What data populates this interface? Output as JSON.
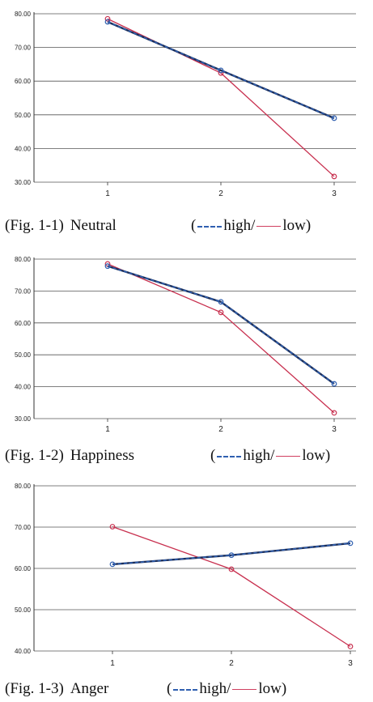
{
  "chart_data": [
    {
      "type": "line",
      "caption_fig": "(Fig.  1-1)",
      "caption_name": "Neutral",
      "categories": [
        "1",
        "2",
        "3"
      ],
      "ylim": [
        30,
        80
      ],
      "yticks": [
        "30.00",
        "40.00",
        "50.00",
        "60.00",
        "70.00",
        "80.00"
      ],
      "grid": true,
      "series": [
        {
          "name": "high",
          "values": [
            77.6,
            63.2,
            49.0
          ],
          "color": "#2f5fb0",
          "style": "dashed"
        },
        {
          "name": "low",
          "values": [
            78.5,
            62.4,
            31.7
          ],
          "color": "#c8304f",
          "style": "solid"
        }
      ],
      "legend": {
        "open": "(",
        "high": "high/",
        "low": "low)"
      }
    },
    {
      "type": "line",
      "caption_fig": "(Fig.  1-2)",
      "caption_name": "Happiness",
      "categories": [
        "1",
        "2",
        "3"
      ],
      "ylim": [
        30,
        80
      ],
      "yticks": [
        "30.00",
        "40.00",
        "50.00",
        "60.00",
        "70.00",
        "80.00"
      ],
      "grid": true,
      "series": [
        {
          "name": "high",
          "values": [
            77.8,
            66.6,
            40.9
          ],
          "color": "#2f5fb0",
          "style": "dashed"
        },
        {
          "name": "low",
          "values": [
            78.5,
            63.3,
            31.8
          ],
          "color": "#c8304f",
          "style": "solid"
        }
      ],
      "legend": {
        "open": "(",
        "high": "high/",
        "low": "low)"
      }
    },
    {
      "type": "line",
      "caption_fig": "(Fig.  1-3)",
      "caption_name": "Anger",
      "categories": [
        "1",
        "2",
        "3"
      ],
      "ylim": [
        40,
        80
      ],
      "yticks": [
        "40.00",
        "50.00",
        "60.00",
        "70.00",
        "80.00"
      ],
      "grid": true,
      "series": [
        {
          "name": "high",
          "values": [
            61.0,
            63.2,
            66.1
          ],
          "color": "#2f5fb0",
          "style": "dashed"
        },
        {
          "name": "low",
          "values": [
            70.1,
            59.8,
            41.1
          ],
          "color": "#c8304f",
          "style": "solid"
        }
      ],
      "legend": {
        "open": "(",
        "high": "high/",
        "low": "low)"
      }
    }
  ]
}
